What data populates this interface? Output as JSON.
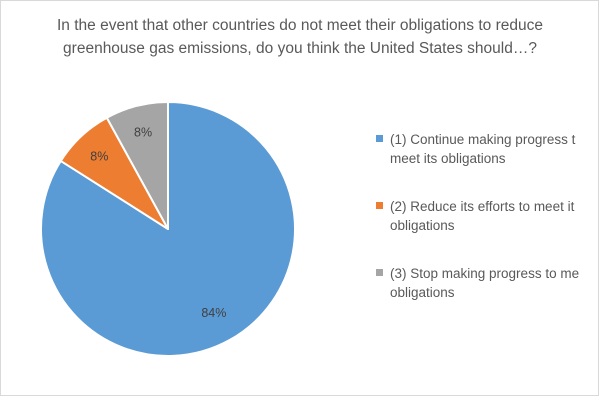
{
  "chart_data": {
    "type": "pie",
    "title_lines": [
      "In the event that other countries do not meet their obligations to reduce",
      "greenhouse gas emissions, do you think the United States should…?"
    ],
    "slices": [
      {
        "label_lines": [
          "(1) Continue making progress t",
          "meet its obligations"
        ],
        "value": 84,
        "data_label": "84%",
        "color": "#5b9bd5"
      },
      {
        "label_lines": [
          "(2) Reduce its efforts to meet it",
          "obligations"
        ],
        "value": 8,
        "data_label": "8%",
        "color": "#ed7d31"
      },
      {
        "label_lines": [
          "(3) Stop making progress to me",
          "obligations"
        ],
        "value": 8,
        "data_label": "8%",
        "color": "#a5a5a5"
      }
    ],
    "legend_position": "right"
  }
}
